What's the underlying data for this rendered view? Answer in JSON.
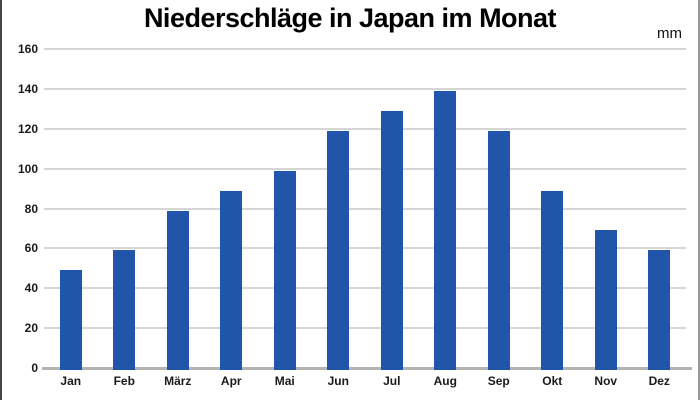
{
  "chart_data": {
    "type": "bar",
    "title": "Niederschläge in Japan im Monat",
    "unit": "mm",
    "categories": [
      "Jan",
      "Feb",
      "März",
      "Apr",
      "Mai",
      "Jun",
      "Jul",
      "Aug",
      "Sep",
      "Okt",
      "Nov",
      "Dez"
    ],
    "values": [
      50,
      60,
      80,
      90,
      100,
      120,
      130,
      140,
      120,
      90,
      70,
      60
    ],
    "xlabel": "",
    "ylabel": "",
    "ylim": [
      0,
      160
    ],
    "ytick_step": 20,
    "grid": true,
    "legend": "none",
    "bar_color": "#2055AA",
    "gridline_color": "#D6D6D6",
    "axis_color": "#B3B3B3",
    "label_color": "#1A1A1A"
  }
}
